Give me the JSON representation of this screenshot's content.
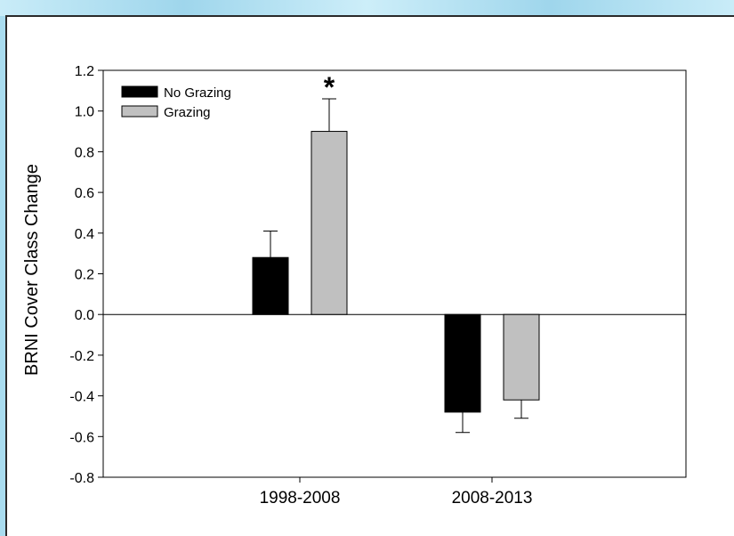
{
  "chart_data": {
    "type": "bar",
    "title": "",
    "xlabel": "",
    "ylabel": "BRNI Cover Class Change",
    "ylim": [
      -0.8,
      1.2
    ],
    "yticks": [
      -0.8,
      -0.6,
      -0.4,
      -0.2,
      0.0,
      0.2,
      0.4,
      0.6,
      0.8,
      1.0,
      1.2
    ],
    "ytick_labels": [
      "-0.8",
      "-0.6",
      "-0.4",
      "-0.2",
      "0.0",
      "0.2",
      "0.4",
      "0.6",
      "0.8",
      "1.0",
      "1.2"
    ],
    "categories": [
      "1998-2008",
      "2008-2013"
    ],
    "series": [
      {
        "name": "No Grazing",
        "color": "#000000",
        "values": [
          0.28,
          -0.48
        ],
        "errors": [
          0.13,
          0.1
        ]
      },
      {
        "name": "Grazing",
        "color": "#c0c0c0",
        "values": [
          0.9,
          -0.42
        ],
        "errors": [
          0.16,
          0.09
        ]
      }
    ],
    "annotations": [
      {
        "text": "*",
        "category": "1998-2008",
        "series": "Grazing"
      }
    ],
    "legend": {
      "placement": "top-left"
    },
    "grid": false,
    "zero_line": true
  }
}
